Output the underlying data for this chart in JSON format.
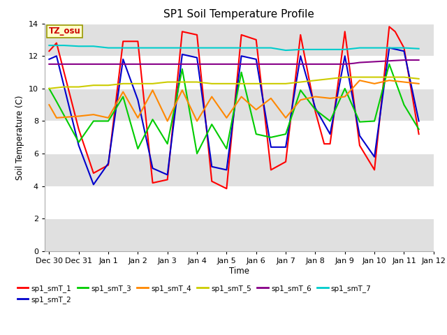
{
  "title": "SP1 Soil Temperature Profile",
  "xlabel": "Time",
  "ylabel": "Soil Temperature (C)",
  "ylim": [
    0,
    14
  ],
  "yticks": [
    0,
    2,
    4,
    6,
    8,
    10,
    12,
    14
  ],
  "fig_bg": "#ffffff",
  "plot_bg": "#ffffff",
  "tz_label": "TZ_osu",
  "tz_color": "#cc0000",
  "tz_bg": "#ffffcc",
  "tz_border": "#999900",
  "legend_entries": [
    "sp1_smT_1",
    "sp1_smT_2",
    "sp1_smT_3",
    "sp1_smT_4",
    "sp1_smT_5",
    "sp1_smT_6",
    "sp1_smT_7"
  ],
  "line_colors": [
    "#ff0000",
    "#0000cc",
    "#00cc00",
    "#ff8800",
    "#cccc00",
    "#880088",
    "#00cccc"
  ],
  "x_tick_labels": [
    "Dec 30",
    "Dec 31",
    "Jan 1",
    "Jan 2",
    "Jan 3",
    "Jan 4",
    "Jan 5",
    "Jan 6",
    "Jan 7",
    "Jan 8",
    "Jan 9",
    "Jan 10",
    "Jan 11",
    "Jan 12"
  ],
  "series": {
    "sp1_smT_1": {
      "x": [
        0,
        0.25,
        1.0,
        1.5,
        2.0,
        2.5,
        3.0,
        3.5,
        4.0,
        4.5,
        5.0,
        5.5,
        6.0,
        6.5,
        7.0,
        7.5,
        8.0,
        8.5,
        9.0,
        9.3,
        9.5,
        10.0,
        10.5,
        11.0,
        11.5,
        11.7,
        12.0,
        12.5
      ],
      "y": [
        12.3,
        12.8,
        7.5,
        4.8,
        5.3,
        12.9,
        12.9,
        4.2,
        4.4,
        13.5,
        13.3,
        4.3,
        3.85,
        13.3,
        13.0,
        5.0,
        5.5,
        13.3,
        8.6,
        6.6,
        6.6,
        13.5,
        6.5,
        5.0,
        13.8,
        13.5,
        12.5,
        7.2
      ]
    },
    "sp1_smT_2": {
      "x": [
        0,
        0.25,
        1.0,
        1.5,
        2.0,
        2.5,
        3.0,
        3.5,
        4.0,
        4.5,
        5.0,
        5.5,
        6.0,
        6.5,
        7.0,
        7.5,
        8.0,
        8.5,
        9.0,
        9.5,
        10.0,
        10.5,
        11.0,
        11.5,
        12.0,
        12.5
      ],
      "y": [
        11.8,
        12.0,
        6.5,
        4.1,
        5.4,
        11.8,
        9.3,
        5.1,
        4.7,
        12.1,
        11.9,
        5.2,
        5.0,
        12.0,
        11.8,
        6.4,
        6.4,
        12.0,
        8.8,
        7.2,
        12.0,
        7.1,
        5.8,
        12.5,
        12.3,
        8.0
      ]
    },
    "sp1_smT_3": {
      "x": [
        0,
        0.25,
        1.0,
        1.5,
        2.0,
        2.5,
        3.0,
        3.5,
        4.0,
        4.5,
        5.0,
        5.5,
        6.0,
        6.5,
        7.0,
        7.5,
        8.0,
        8.5,
        9.0,
        9.5,
        10.0,
        10.5,
        11.0,
        11.5,
        12.0,
        12.5
      ],
      "y": [
        10.0,
        9.2,
        6.7,
        8.0,
        8.0,
        9.5,
        6.3,
        8.1,
        6.6,
        11.2,
        6.0,
        7.8,
        6.3,
        11.0,
        7.2,
        7.0,
        7.2,
        9.9,
        8.7,
        8.0,
        10.0,
        7.95,
        8.0,
        11.5,
        9.0,
        7.5
      ]
    },
    "sp1_smT_4": {
      "x": [
        0,
        0.25,
        1.0,
        1.5,
        2.0,
        2.5,
        3.0,
        3.5,
        4.0,
        4.5,
        5.0,
        5.5,
        6.0,
        6.5,
        7.0,
        7.5,
        8.0,
        8.5,
        9.0,
        9.5,
        10.0,
        10.5,
        11.0,
        11.5,
        12.0,
        12.5
      ],
      "y": [
        9.0,
        8.2,
        8.3,
        8.4,
        8.2,
        9.8,
        8.2,
        9.9,
        8.0,
        9.9,
        8.0,
        9.5,
        8.2,
        9.5,
        8.7,
        9.4,
        8.2,
        9.3,
        9.5,
        9.4,
        9.5,
        10.5,
        10.3,
        10.5,
        10.4,
        10.3
      ]
    },
    "sp1_smT_5": {
      "x": [
        0,
        0.5,
        1.0,
        1.5,
        2.0,
        2.5,
        3.0,
        3.5,
        4.0,
        4.5,
        5.0,
        5.5,
        6.0,
        6.5,
        7.0,
        7.5,
        8.0,
        8.5,
        9.0,
        9.5,
        10.0,
        10.5,
        11.0,
        11.5,
        12.0,
        12.5
      ],
      "y": [
        10.0,
        10.1,
        10.1,
        10.2,
        10.2,
        10.3,
        10.3,
        10.3,
        10.4,
        10.4,
        10.4,
        10.3,
        10.3,
        10.3,
        10.3,
        10.3,
        10.3,
        10.4,
        10.5,
        10.6,
        10.7,
        10.7,
        10.7,
        10.7,
        10.7,
        10.6
      ]
    },
    "sp1_smT_6": {
      "x": [
        0,
        0.5,
        1.0,
        1.5,
        2.0,
        2.5,
        3.0,
        3.5,
        4.0,
        4.5,
        5.0,
        5.5,
        6.0,
        6.5,
        7.0,
        7.5,
        8.0,
        8.5,
        9.0,
        9.5,
        10.0,
        10.3,
        10.5,
        11.0,
        11.5,
        12.0,
        12.5
      ],
      "y": [
        11.5,
        11.5,
        11.5,
        11.5,
        11.5,
        11.5,
        11.5,
        11.5,
        11.5,
        11.5,
        11.5,
        11.5,
        11.5,
        11.5,
        11.5,
        11.5,
        11.5,
        11.5,
        11.5,
        11.5,
        11.5,
        11.55,
        11.6,
        11.65,
        11.7,
        11.75,
        11.75
      ]
    },
    "sp1_smT_7": {
      "x": [
        0,
        0.5,
        1.0,
        1.5,
        2.0,
        2.5,
        3.0,
        3.5,
        4.0,
        4.5,
        5.0,
        5.5,
        6.0,
        6.5,
        7.0,
        7.5,
        8.0,
        8.5,
        9.0,
        9.5,
        10.0,
        10.5,
        11.0,
        11.5,
        12.0,
        12.5
      ],
      "y": [
        12.65,
        12.65,
        12.6,
        12.6,
        12.5,
        12.5,
        12.5,
        12.5,
        12.5,
        12.5,
        12.5,
        12.5,
        12.5,
        12.5,
        12.5,
        12.5,
        12.35,
        12.4,
        12.4,
        12.4,
        12.4,
        12.5,
        12.5,
        12.5,
        12.5,
        12.45
      ]
    }
  },
  "grid_band_color": "#e0e0e0",
  "line_width": 1.5
}
